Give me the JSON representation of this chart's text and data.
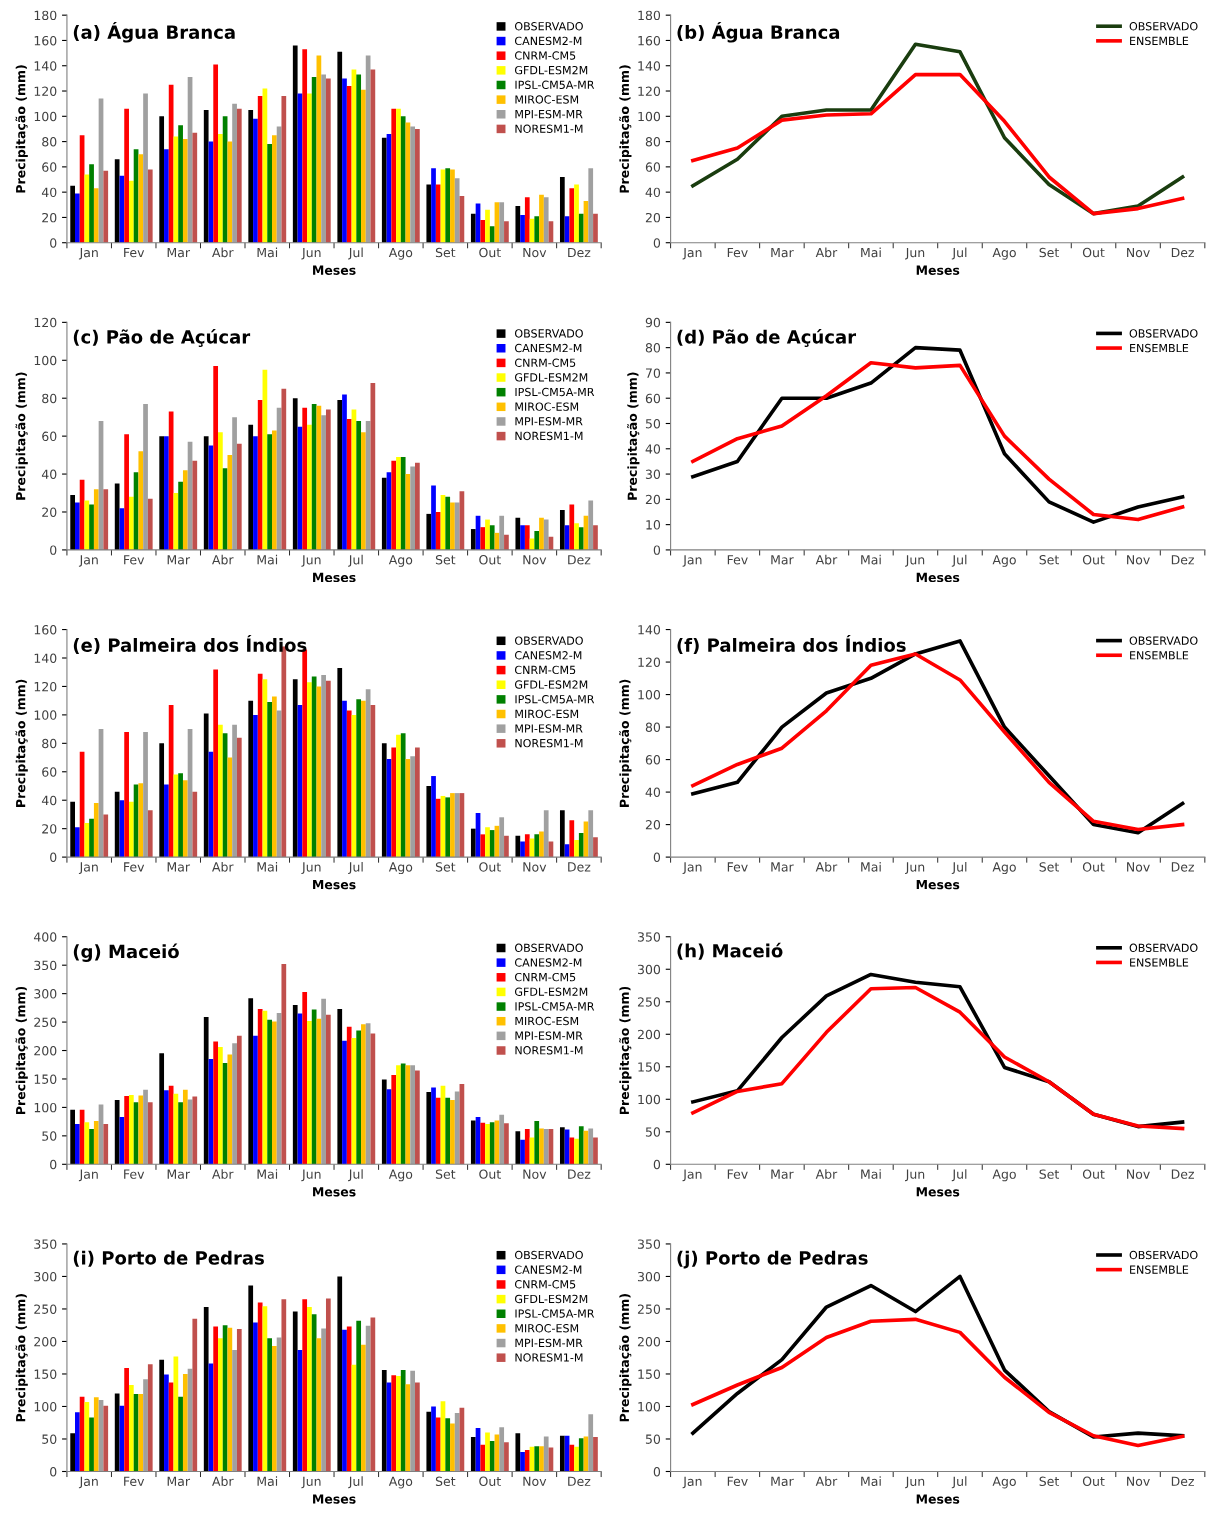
{
  "chart_data": [
    {
      "type": "bar",
      "title": "(a) Água Branca",
      "xlabel": "Meses",
      "ylabel": "Precipitação (mm)",
      "categories": [
        "Jan",
        "Fev",
        "Mar",
        "Abr",
        "Mai",
        "Jun",
        "Jul",
        "Ago",
        "Set",
        "Out",
        "Nov",
        "Dez"
      ],
      "ylim": [
        0,
        180
      ],
      "yticks": [
        0,
        20,
        40,
        60,
        80,
        100,
        120,
        140,
        160,
        180
      ],
      "legend": "top right",
      "series": [
        {
          "name": "OBSERVADO",
          "color": "#000000",
          "values": [
            45,
            66,
            100,
            105,
            105,
            156,
            151,
            83,
            46,
            23,
            29,
            52
          ]
        },
        {
          "name": "CANESM2-M",
          "color": "#0000ff",
          "values": [
            39,
            53,
            74,
            80,
            98,
            118,
            130,
            86,
            59,
            31,
            22,
            21
          ]
        },
        {
          "name": "CNRM-CM5",
          "color": "#ff0000",
          "values": [
            85,
            106,
            125,
            141,
            116,
            153,
            124,
            106,
            46,
            18,
            36,
            43
          ]
        },
        {
          "name": "GFDL-ESM2M",
          "color": "#ffff00",
          "values": [
            54,
            49,
            84,
            86,
            122,
            118,
            137,
            106,
            58,
            26,
            19,
            46
          ]
        },
        {
          "name": "IPSL-CM5A-MR",
          "color": "#008000",
          "values": [
            62,
            74,
            93,
            100,
            78,
            131,
            133,
            100,
            59,
            13,
            21,
            23
          ]
        },
        {
          "name": "MIROC-ESM",
          "color": "#ffc000",
          "values": [
            43,
            70,
            82,
            80,
            85,
            148,
            121,
            95,
            58,
            32,
            38,
            33
          ]
        },
        {
          "name": "MPI-ESM-MR",
          "color": "#a0a0a0",
          "values": [
            114,
            118,
            131,
            110,
            92,
            133,
            148,
            92,
            51,
            32,
            36,
            59
          ]
        },
        {
          "name": "NORESM1-M",
          "color": "#c0504d",
          "values": [
            57,
            58,
            87,
            106,
            116,
            130,
            137,
            90,
            37,
            17,
            17,
            23
          ]
        }
      ]
    },
    {
      "type": "line",
      "title": "(b) Água Branca",
      "xlabel": "Meses",
      "ylabel": "Precipitação (mm)",
      "categories": [
        "Jan",
        "Fev",
        "Mar",
        "Abr",
        "Mai",
        "Jun",
        "Jul",
        "Ago",
        "Set",
        "Out",
        "Nov",
        "Dez"
      ],
      "ylim": [
        0,
        180
      ],
      "yticks": [
        0,
        20,
        40,
        60,
        80,
        100,
        120,
        140,
        160,
        180
      ],
      "legend": "top right",
      "series": [
        {
          "name": "OBSERVADO",
          "color": "#1a3d0f",
          "values": [
            45,
            66,
            100,
            105,
            105,
            157,
            151,
            83,
            46,
            23,
            29,
            52
          ]
        },
        {
          "name": "ENSEMBLE",
          "color": "#ff0000",
          "values": [
            65,
            75,
            97,
            101,
            102,
            133,
            133,
            96,
            52,
            23,
            27,
            35
          ]
        }
      ]
    },
    {
      "type": "bar",
      "title": "(c) Pão de Açúcar",
      "xlabel": "Meses",
      "ylabel": "Precipitação (mm)",
      "categories": [
        "Jan",
        "Fev",
        "Mar",
        "Abr",
        "Mai",
        "Jun",
        "Jul",
        "Ago",
        "Set",
        "Out",
        "Nov",
        "Dez"
      ],
      "ylim": [
        0,
        120
      ],
      "yticks": [
        0,
        20,
        40,
        60,
        80,
        100,
        120
      ],
      "legend": "top right",
      "series": [
        {
          "name": "OBSERVADO",
          "color": "#000000",
          "values": [
            29,
            35,
            60,
            60,
            66,
            80,
            79,
            38,
            19,
            11,
            17,
            21
          ]
        },
        {
          "name": "CANESM2-M",
          "color": "#0000ff",
          "values": [
            25,
            22,
            60,
            55,
            60,
            65,
            82,
            41,
            34,
            18,
            13,
            13
          ]
        },
        {
          "name": "CNRM-CM5",
          "color": "#ff0000",
          "values": [
            37,
            61,
            73,
            97,
            79,
            75,
            69,
            47,
            20,
            12,
            13,
            24
          ]
        },
        {
          "name": "GFDL-ESM2M",
          "color": "#ffff00",
          "values": [
            26,
            28,
            30,
            62,
            95,
            66,
            74,
            49,
            29,
            16,
            6,
            14
          ]
        },
        {
          "name": "IPSL-CM5A-MR",
          "color": "#008000",
          "values": [
            24,
            41,
            36,
            43,
            61,
            77,
            68,
            49,
            28,
            13,
            10,
            12
          ]
        },
        {
          "name": "MIROC-ESM",
          "color": "#ffc000",
          "values": [
            32,
            52,
            42,
            50,
            63,
            76,
            62,
            40,
            25,
            9,
            17,
            18
          ]
        },
        {
          "name": "MPI-ESM-MR",
          "color": "#a0a0a0",
          "values": [
            68,
            77,
            57,
            70,
            75,
            71,
            68,
            44,
            25,
            18,
            16,
            26
          ]
        },
        {
          "name": "NORESM1-M",
          "color": "#c0504d",
          "values": [
            32,
            27,
            47,
            56,
            85,
            74,
            88,
            46,
            31,
            8,
            7,
            13
          ]
        }
      ]
    },
    {
      "type": "line",
      "title": "(d) Pão de Açúcar",
      "xlabel": "Meses",
      "ylabel": "Precipitação (mm)",
      "categories": [
        "Jan",
        "Fev",
        "Mar",
        "Abr",
        "Mai",
        "Jun",
        "Jul",
        "Ago",
        "Set",
        "Out",
        "Nov",
        "Dez"
      ],
      "ylim": [
        0,
        90
      ],
      "yticks": [
        0,
        10,
        20,
        30,
        40,
        50,
        60,
        70,
        80,
        90
      ],
      "legend": "top right",
      "series": [
        {
          "name": "OBSERVADO",
          "color": "#000000",
          "values": [
            29,
            35,
            60,
            60,
            66,
            80,
            79,
            38,
            19,
            11,
            17,
            21
          ]
        },
        {
          "name": "ENSEMBLE",
          "color": "#ff0000",
          "values": [
            35,
            44,
            49,
            61,
            74,
            72,
            73,
            45,
            28,
            14,
            12,
            17
          ]
        }
      ]
    },
    {
      "type": "bar",
      "title": "(e) Palmeira dos Índios",
      "xlabel": "Meses",
      "ylabel": "Precipitação (mm)",
      "categories": [
        "Jan",
        "Fev",
        "Mar",
        "Abr",
        "Mai",
        "Jun",
        "Jul",
        "Ago",
        "Set",
        "Out",
        "Nov",
        "Dez"
      ],
      "ylim": [
        0,
        160
      ],
      "yticks": [
        0,
        20,
        40,
        60,
        80,
        100,
        120,
        140,
        160
      ],
      "legend": "top right",
      "series": [
        {
          "name": "OBSERVADO",
          "color": "#000000",
          "values": [
            39,
            46,
            80,
            101,
            110,
            125,
            133,
            80,
            50,
            20,
            15,
            33
          ]
        },
        {
          "name": "CANESM2-M",
          "color": "#0000ff",
          "values": [
            21,
            40,
            51,
            74,
            100,
            107,
            110,
            69,
            57,
            31,
            11,
            9
          ]
        },
        {
          "name": "CNRM-CM5",
          "color": "#ff0000",
          "values": [
            74,
            88,
            107,
            132,
            129,
            146,
            103,
            77,
            41,
            16,
            16,
            26
          ]
        },
        {
          "name": "GFDL-ESM2M",
          "color": "#ffff00",
          "values": [
            24,
            39,
            58,
            93,
            125,
            123,
            100,
            86,
            43,
            21,
            13,
            12
          ]
        },
        {
          "name": "IPSL-CM5A-MR",
          "color": "#008000",
          "values": [
            27,
            51,
            59,
            87,
            109,
            127,
            111,
            87,
            42,
            19,
            16,
            17
          ]
        },
        {
          "name": "MIROC-ESM",
          "color": "#ffc000",
          "values": [
            38,
            52,
            54,
            70,
            113,
            120,
            110,
            69,
            45,
            22,
            18,
            25
          ]
        },
        {
          "name": "MPI-ESM-MR",
          "color": "#a0a0a0",
          "values": [
            90,
            88,
            90,
            93,
            103,
            128,
            118,
            71,
            45,
            28,
            33,
            33
          ]
        },
        {
          "name": "NORESM1-M",
          "color": "#c0504d",
          "values": [
            30,
            33,
            46,
            84,
            148,
            124,
            107,
            77,
            45,
            15,
            11,
            14
          ]
        }
      ]
    },
    {
      "type": "line",
      "title": "(f) Palmeira dos Índios",
      "xlabel": "Meses",
      "ylabel": "Precipitação (mm)",
      "categories": [
        "Jan",
        "Fev",
        "Mar",
        "Abr",
        "Mai",
        "Jun",
        "Jul",
        "Ago",
        "Set",
        "Out",
        "Nov",
        "Dez"
      ],
      "ylim": [
        0,
        140
      ],
      "yticks": [
        0,
        20,
        40,
        60,
        80,
        100,
        120,
        140
      ],
      "legend": "top right",
      "series": [
        {
          "name": "OBSERVADO",
          "color": "#000000",
          "values": [
            39,
            46,
            80,
            101,
            110,
            125,
            133,
            80,
            50,
            20,
            15,
            33
          ]
        },
        {
          "name": "ENSEMBLE",
          "color": "#ff0000",
          "values": [
            44,
            57,
            67,
            90,
            118,
            125,
            109,
            77,
            46,
            22,
            17,
            20
          ]
        }
      ]
    },
    {
      "type": "bar",
      "title": "(g) Maceió",
      "xlabel": "Meses",
      "ylabel": "Precipitação (mm)",
      "categories": [
        "Jan",
        "Fev",
        "Mar",
        "Abr",
        "Mai",
        "Jun",
        "Jul",
        "Ago",
        "Set",
        "Out",
        "Nov",
        "Dez"
      ],
      "ylim": [
        0,
        400
      ],
      "yticks": [
        0,
        50,
        100,
        150,
        200,
        250,
        300,
        350,
        400
      ],
      "legend": "top right",
      "series": [
        {
          "name": "OBSERVADO",
          "color": "#000000",
          "values": [
            96,
            113,
            195,
            259,
            292,
            280,
            273,
            149,
            127,
            77,
            58,
            65
          ]
        },
        {
          "name": "CANESM2-M",
          "color": "#0000ff",
          "values": [
            71,
            83,
            130,
            185,
            226,
            265,
            217,
            132,
            135,
            83,
            43,
            61
          ]
        },
        {
          "name": "CNRM-CM5",
          "color": "#ff0000",
          "values": [
            96,
            120,
            138,
            216,
            273,
            303,
            242,
            157,
            117,
            73,
            62,
            47
          ]
        },
        {
          "name": "GFDL-ESM2M",
          "color": "#ffff00",
          "values": [
            74,
            122,
            124,
            206,
            270,
            252,
            222,
            174,
            138,
            71,
            47,
            45
          ]
        },
        {
          "name": "IPSL-CM5A-MR",
          "color": "#008000",
          "values": [
            62,
            109,
            109,
            178,
            254,
            272,
            235,
            177,
            117,
            74,
            76,
            67
          ]
        },
        {
          "name": "MIROC-ESM",
          "color": "#ffc000",
          "values": [
            76,
            121,
            131,
            193,
            251,
            256,
            246,
            174,
            113,
            77,
            63,
            59
          ]
        },
        {
          "name": "MPI-ESM-MR",
          "color": "#a0a0a0",
          "values": [
            105,
            131,
            114,
            213,
            266,
            291,
            248,
            174,
            128,
            87,
            62,
            63
          ]
        },
        {
          "name": "NORESM1-M",
          "color": "#c0504d",
          "values": [
            71,
            109,
            119,
            226,
            352,
            263,
            230,
            165,
            141,
            72,
            62,
            47
          ]
        }
      ]
    },
    {
      "type": "line",
      "title": "(h) Maceió",
      "xlabel": "Meses",
      "ylabel": "Precipitação (mm)",
      "categories": [
        "Jan",
        "Fev",
        "Mar",
        "Abr",
        "Mai",
        "Jun",
        "Jul",
        "Ago",
        "Set",
        "Out",
        "Nov",
        "Dez"
      ],
      "ylim": [
        0,
        350
      ],
      "yticks": [
        0,
        50,
        100,
        150,
        200,
        250,
        300,
        350
      ],
      "legend": "top right",
      "series": [
        {
          "name": "OBSERVADO",
          "color": "#000000",
          "values": [
            96,
            113,
            195,
            259,
            292,
            280,
            273,
            149,
            127,
            77,
            58,
            65
          ]
        },
        {
          "name": "ENSEMBLE",
          "color": "#ff0000",
          "values": [
            79,
            112,
            124,
            203,
            270,
            272,
            234,
            165,
            127,
            77,
            59,
            55
          ]
        }
      ]
    },
    {
      "type": "bar",
      "title": "(i) Porto de Pedras",
      "xlabel": "Meses",
      "ylabel": "Precipitação (mm)",
      "categories": [
        "Jan",
        "Fev",
        "Mar",
        "Abr",
        "Mai",
        "Jun",
        "Jul",
        "Ago",
        "Set",
        "Out",
        "Nov",
        "Dez"
      ],
      "ylim": [
        0,
        350
      ],
      "yticks": [
        0,
        50,
        100,
        150,
        200,
        250,
        300,
        350
      ],
      "legend": "top right",
      "series": [
        {
          "name": "OBSERVADO",
          "color": "#000000",
          "values": [
            59,
            120,
            172,
            253,
            286,
            246,
            300,
            156,
            92,
            53,
            59,
            55
          ]
        },
        {
          "name": "CANESM2-M",
          "color": "#0000ff",
          "values": [
            91,
            101,
            149,
            166,
            229,
            187,
            218,
            137,
            100,
            67,
            30,
            55
          ]
        },
        {
          "name": "CNRM-CM5",
          "color": "#ff0000",
          "values": [
            115,
            159,
            137,
            223,
            260,
            265,
            223,
            148,
            83,
            41,
            33,
            41
          ]
        },
        {
          "name": "GFDL-ESM2M",
          "color": "#ffff00",
          "values": [
            107,
            133,
            177,
            205,
            254,
            253,
            164,
            147,
            108,
            60,
            38,
            38
          ]
        },
        {
          "name": "IPSL-CM5A-MR",
          "color": "#008000",
          "values": [
            83,
            119,
            115,
            225,
            205,
            242,
            232,
            156,
            82,
            47,
            39,
            51
          ]
        },
        {
          "name": "MIROC-ESM",
          "color": "#ffc000",
          "values": [
            114,
            119,
            150,
            221,
            193,
            205,
            195,
            134,
            74,
            57,
            39,
            54
          ]
        },
        {
          "name": "MPI-ESM-MR",
          "color": "#a0a0a0",
          "values": [
            110,
            142,
            158,
            187,
            206,
            220,
            224,
            155,
            90,
            68,
            54,
            88
          ]
        },
        {
          "name": "NORESM1-M",
          "color": "#c0504d",
          "values": [
            101,
            165,
            235,
            219,
            265,
            266,
            237,
            137,
            98,
            45,
            37,
            53
          ]
        }
      ]
    },
    {
      "type": "line",
      "title": "(j) Porto de Pedras",
      "xlabel": "Meses",
      "ylabel": "Precipitação (mm)",
      "categories": [
        "Jan",
        "Fev",
        "Mar",
        "Abr",
        "Mai",
        "Jun",
        "Jul",
        "Ago",
        "Set",
        "Out",
        "Nov",
        "Dez"
      ],
      "ylim": [
        0,
        350
      ],
      "yticks": [
        0,
        50,
        100,
        150,
        200,
        250,
        300,
        350
      ],
      "legend": "top right",
      "series": [
        {
          "name": "OBSERVADO",
          "color": "#000000",
          "values": [
            59,
            120,
            172,
            253,
            286,
            246,
            300,
            156,
            92,
            53,
            59,
            55
          ]
        },
        {
          "name": "ENSEMBLE",
          "color": "#ff0000",
          "values": [
            103,
            133,
            160,
            206,
            231,
            234,
            214,
            145,
            91,
            55,
            40,
            54
          ]
        }
      ]
    }
  ]
}
